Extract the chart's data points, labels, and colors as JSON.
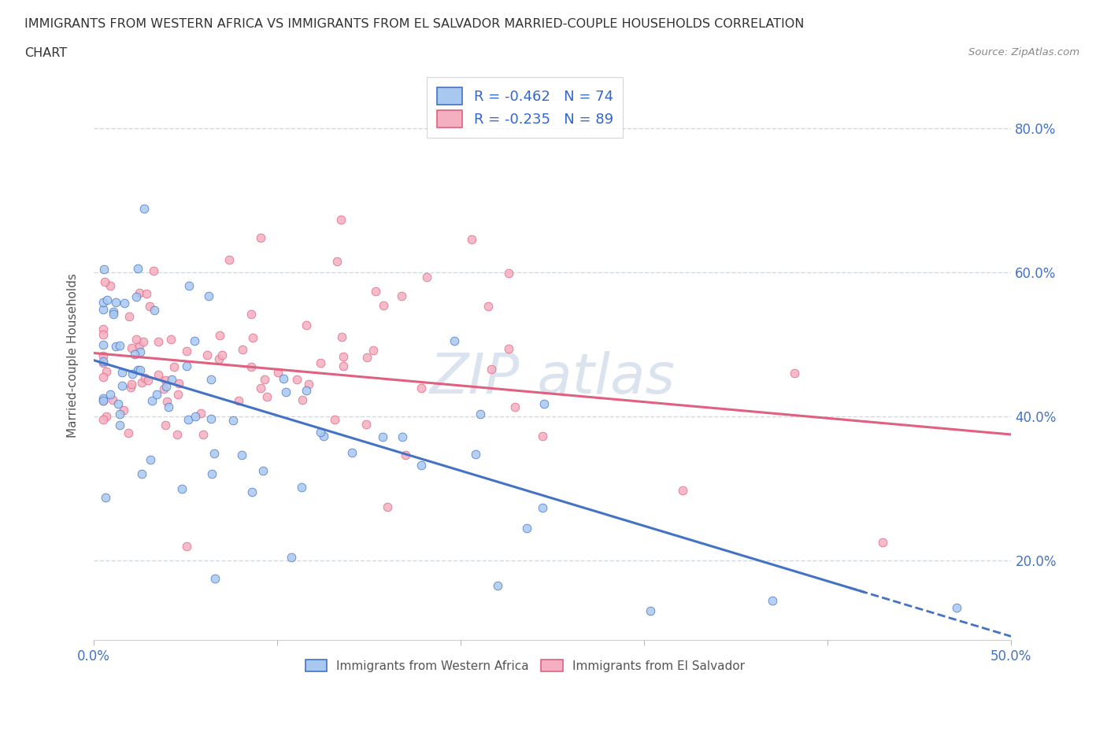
{
  "title_line1": "IMMIGRANTS FROM WESTERN AFRICA VS IMMIGRANTS FROM EL SALVADOR MARRIED-COUPLE HOUSEHOLDS CORRELATION",
  "title_line2": "CHART",
  "source": "Source: ZipAtlas.com",
  "ylabel": "Married-couple Households",
  "series1_label": "Immigrants from Western Africa",
  "series2_label": "Immigrants from El Salvador",
  "series1_color": "#a8c8f0",
  "series1_line_color": "#4472c4",
  "series2_color": "#f4b0c0",
  "series2_line_color": "#e06080",
  "series1_R": -0.462,
  "series1_N": 74,
  "series2_R": -0.235,
  "series2_N": 89,
  "watermark_text": "ZIP atlas",
  "watermark_color": "#ccd9e8",
  "background_color": "#ffffff",
  "grid_color": "#d0d8e0",
  "xlim": [
    0.0,
    0.5
  ],
  "ylim": [
    0.09,
    0.88
  ],
  "ytick_values": [
    0.2,
    0.4,
    0.6,
    0.8
  ],
  "ytick_labels": [
    "20.0%",
    "40.0%",
    "60.0%",
    "80.0%"
  ],
  "xtick_values": [
    0.0,
    0.1,
    0.2,
    0.3,
    0.4,
    0.5
  ],
  "trend1_x0": 0.0,
  "trend1_y0": 0.478,
  "trend1_x1": 0.5,
  "trend1_y1": 0.095,
  "trend1_solid_end": 0.42,
  "trend2_x0": 0.0,
  "trend2_y0": 0.488,
  "trend2_x1": 0.5,
  "trend2_y1": 0.375
}
